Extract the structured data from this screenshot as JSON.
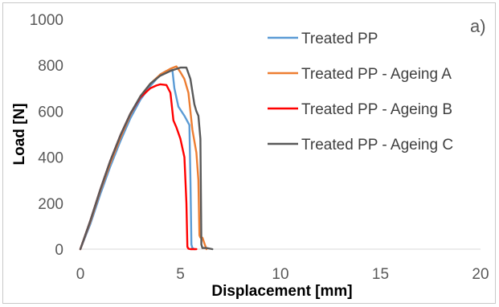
{
  "chart_data": {
    "type": "line",
    "title": "",
    "panel_label": "a)",
    "xlabel": "Displacement [mm]",
    "ylabel": "Load [N]",
    "xlim": [
      0,
      20
    ],
    "ylim": [
      0,
      1000
    ],
    "xticks": [
      "0",
      "5",
      "10",
      "15",
      "20"
    ],
    "yticks": [
      "0",
      "200",
      "400",
      "600",
      "800",
      "1000"
    ],
    "grid": false,
    "legend_position": "top-right",
    "series": [
      {
        "name": "Treated PP",
        "color": "#5B9BD5",
        "x": [
          0,
          0.5,
          1.0,
          1.5,
          2.0,
          2.5,
          3.0,
          3.5,
          4.0,
          4.3,
          4.6,
          4.7,
          4.9,
          5.2,
          5.45,
          5.5,
          5.55,
          5.6,
          5.7
        ],
        "y": [
          0,
          110,
          240,
          360,
          470,
          570,
          650,
          710,
          760,
          775,
          780,
          700,
          620,
          580,
          540,
          300,
          20,
          5,
          0
        ]
      },
      {
        "name": "Treated PP - Ageing A",
        "color": "#ED7D31",
        "x": [
          0,
          0.5,
          1.0,
          1.5,
          2.0,
          2.5,
          3.0,
          3.5,
          4.0,
          4.5,
          4.8,
          5.0,
          5.2,
          5.4,
          5.6,
          5.8,
          5.9,
          5.95,
          6.0,
          6.1,
          6.3
        ],
        "y": [
          0,
          120,
          255,
          375,
          485,
          585,
          665,
          720,
          760,
          785,
          795,
          770,
          740,
          680,
          520,
          420,
          300,
          60,
          50,
          50,
          0
        ]
      },
      {
        "name": "Treated PP - Ageing B",
        "color": "#FF0000",
        "x": [
          0,
          0.5,
          1.0,
          1.5,
          2.0,
          2.5,
          3.0,
          3.5,
          3.8,
          4.0,
          4.3,
          4.5,
          4.65,
          4.8,
          5.0,
          5.2,
          5.3,
          5.35,
          5.4,
          5.5,
          5.8
        ],
        "y": [
          0,
          125,
          260,
          385,
          495,
          590,
          660,
          700,
          712,
          717,
          714,
          680,
          560,
          530,
          480,
          400,
          200,
          10,
          2,
          0,
          0
        ]
      },
      {
        "name": "Treated PP - Ageing C",
        "color": "#595959",
        "x": [
          0,
          0.5,
          1.0,
          1.5,
          2.0,
          2.5,
          3.0,
          3.5,
          4.0,
          4.5,
          5.0,
          5.3,
          5.5,
          5.7,
          5.8,
          5.9,
          6.0,
          6.05,
          6.1,
          6.3,
          6.6
        ],
        "y": [
          0,
          125,
          260,
          385,
          495,
          590,
          665,
          720,
          755,
          775,
          790,
          790,
          740,
          630,
          600,
          580,
          480,
          20,
          5,
          5,
          0
        ]
      }
    ]
  }
}
